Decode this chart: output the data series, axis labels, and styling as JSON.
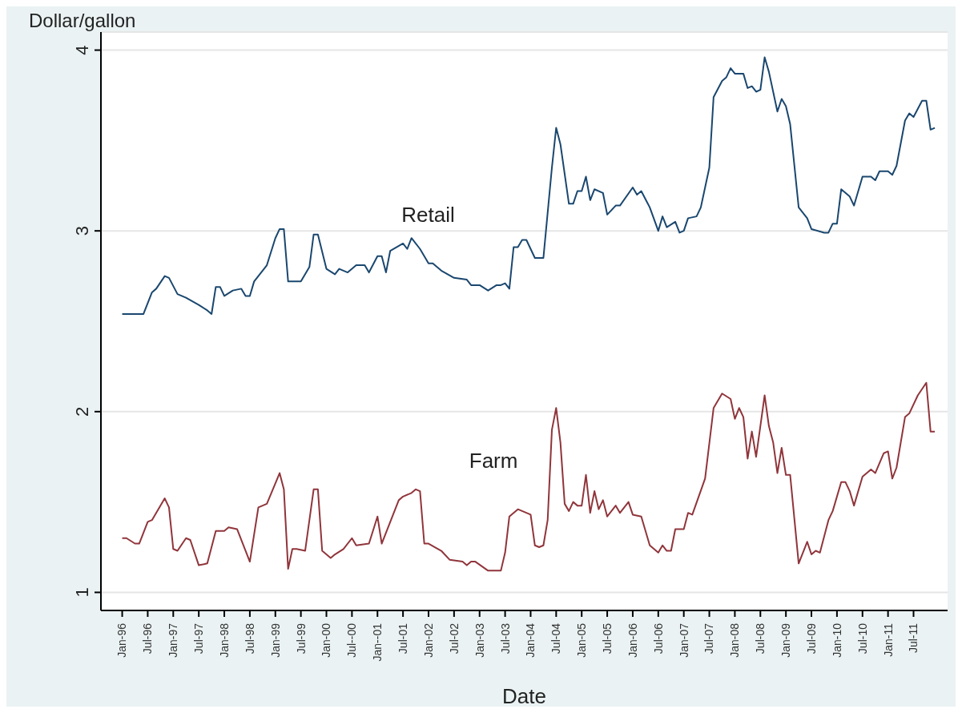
{
  "chart_data": {
    "type": "line",
    "xlabel": "Date",
    "ylabel": "Dollar/gallon",
    "legend": false,
    "grid": "y",
    "xlim": [
      "1995-08",
      "2012-03"
    ],
    "ylim": [
      0.9,
      4.1
    ],
    "yticks": [
      1,
      2,
      3,
      4
    ],
    "xticks": [
      {
        "value": "1996-01",
        "label": "Jan-96"
      },
      {
        "value": "1996-07",
        "label": "Jul-96"
      },
      {
        "value": "1997-01",
        "label": "Jan-97"
      },
      {
        "value": "1997-07",
        "label": "Jul-97"
      },
      {
        "value": "1998-01",
        "label": "Jan-98"
      },
      {
        "value": "1998-07",
        "label": "Jul-98"
      },
      {
        "value": "1999-01",
        "label": "Jan-99"
      },
      {
        "value": "1999-07",
        "label": "Jul-99"
      },
      {
        "value": "2000-01",
        "label": "Jan-00"
      },
      {
        "value": "2000-07",
        "label": "Jul--00"
      },
      {
        "value": "2001-01",
        "label": "Jan--01"
      },
      {
        "value": "2001-07",
        "label": "Jul-01"
      },
      {
        "value": "2002-01",
        "label": "Jan-02"
      },
      {
        "value": "2002-07",
        "label": "Jul-02"
      },
      {
        "value": "2003-01",
        "label": "Jan-03"
      },
      {
        "value": "2003-07",
        "label": "Jul-03"
      },
      {
        "value": "2004-01",
        "label": "Jan-04"
      },
      {
        "value": "2004-07",
        "label": "Jul-04"
      },
      {
        "value": "2005-01",
        "label": "Jan-05"
      },
      {
        "value": "2005-07",
        "label": "Jul-05"
      },
      {
        "value": "2006-01",
        "label": "Jan-06"
      },
      {
        "value": "2006-07",
        "label": "Jul-06"
      },
      {
        "value": "2007-01",
        "label": "Jan-07"
      },
      {
        "value": "2007-07",
        "label": "Jul-07"
      },
      {
        "value": "2008-01",
        "label": "Jan-08"
      },
      {
        "value": "2008-07",
        "label": "Jul-08"
      },
      {
        "value": "2009-01",
        "label": "Jan-09"
      },
      {
        "value": "2009-07",
        "label": "Jul-09"
      },
      {
        "value": "2010-01",
        "label": "Jan-10"
      },
      {
        "value": "2010-07",
        "label": "Jul-10"
      },
      {
        "value": "2011-01",
        "label": "Jan-11"
      },
      {
        "value": "2011-07",
        "label": "Jul-11"
      }
    ],
    "series": [
      {
        "name": "Retail",
        "color": "#1a476f",
        "x": [
          "1996-01",
          "1996-06",
          "1996-08",
          "1996-09",
          "1996-11",
          "1996-12",
          "1997-02",
          "1997-04",
          "1997-07",
          "1997-09",
          "1997-10",
          "1997-11",
          "1997-12",
          "1998-01",
          "1998-03",
          "1998-05",
          "1998-06",
          "1998-07",
          "1998-08",
          "1998-11",
          "1999-01",
          "1999-02",
          "1999-03",
          "1999-04",
          "1999-07",
          "1999-09",
          "1999-10",
          "1999-11",
          "2000-01",
          "2000-03",
          "2000-04",
          "2000-06",
          "2000-08",
          "2000-10",
          "2000-11",
          "2001-01",
          "2001-02",
          "2001-03",
          "2001-04",
          "2001-07",
          "2001-08",
          "2001-09",
          "2001-11",
          "2002-01",
          "2002-02",
          "2002-04",
          "2002-07",
          "2002-10",
          "2002-11",
          "2003-01",
          "2003-03",
          "2003-05",
          "2003-06",
          "2003-07",
          "2003-08",
          "2003-09",
          "2003-10",
          "2003-11",
          "2003-12",
          "2004-02",
          "2004-04",
          "2004-06",
          "2004-07",
          "2004-08",
          "2004-10",
          "2004-11",
          "2004-12",
          "2005-01",
          "2005-02",
          "2005-03",
          "2005-04",
          "2005-06",
          "2005-07",
          "2005-09",
          "2005-10",
          "2006-01",
          "2006-02",
          "2006-03",
          "2006-05",
          "2006-07",
          "2006-08",
          "2006-09",
          "2006-11",
          "2006-12",
          "2007-01",
          "2007-02",
          "2007-04",
          "2007-05",
          "2007-07",
          "2007-08",
          "2007-10",
          "2007-11",
          "2007-12",
          "2008-01",
          "2008-03",
          "2008-04",
          "2008-05",
          "2008-06",
          "2008-07",
          "2008-08",
          "2008-09",
          "2008-11",
          "2008-12",
          "2009-01",
          "2009-02",
          "2009-04",
          "2009-06",
          "2009-07",
          "2009-10",
          "2009-11",
          "2009-12",
          "2010-01",
          "2010-02",
          "2010-04",
          "2010-05",
          "2010-07",
          "2010-09",
          "2010-10",
          "2010-11",
          "2011-01",
          "2011-02",
          "2011-03",
          "2011-05",
          "2011-06",
          "2011-07",
          "2011-09",
          "2011-10",
          "2011-11",
          "2011-12"
        ],
        "values": [
          2.54,
          2.54,
          2.66,
          2.68,
          2.75,
          2.74,
          2.65,
          2.63,
          2.59,
          2.56,
          2.54,
          2.69,
          2.69,
          2.64,
          2.67,
          2.68,
          2.64,
          2.64,
          2.72,
          2.81,
          2.96,
          3.01,
          3.01,
          2.72,
          2.72,
          2.8,
          2.98,
          2.98,
          2.79,
          2.76,
          2.79,
          2.77,
          2.81,
          2.81,
          2.77,
          2.86,
          2.86,
          2.77,
          2.89,
          2.93,
          2.9,
          2.96,
          2.9,
          2.82,
          2.82,
          2.78,
          2.74,
          2.73,
          2.7,
          2.7,
          2.67,
          2.7,
          2.7,
          2.71,
          2.68,
          2.91,
          2.91,
          2.95,
          2.95,
          2.85,
          2.85,
          3.35,
          3.57,
          3.48,
          3.15,
          3.15,
          3.22,
          3.22,
          3.3,
          3.17,
          3.23,
          3.21,
          3.09,
          3.14,
          3.14,
          3.24,
          3.2,
          3.22,
          3.13,
          3.0,
          3.08,
          3.02,
          3.05,
          2.99,
          3.0,
          3.07,
          3.08,
          3.13,
          3.35,
          3.74,
          3.83,
          3.85,
          3.9,
          3.87,
          3.87,
          3.79,
          3.8,
          3.77,
          3.78,
          3.96,
          3.88,
          3.66,
          3.73,
          3.69,
          3.59,
          3.13,
          3.07,
          3.01,
          2.99,
          2.99,
          3.04,
          3.04,
          3.23,
          3.19,
          3.14,
          3.3,
          3.3,
          3.28,
          3.33,
          3.33,
          3.31,
          3.36,
          3.61,
          3.65,
          3.63,
          3.72,
          3.72,
          3.56,
          3.57
        ]
      },
      {
        "name": "Farm",
        "color": "#90353b",
        "x": [
          "1996-01",
          "1996-02",
          "1996-04",
          "1996-05",
          "1996-07",
          "1996-08",
          "1996-11",
          "1996-12",
          "1997-01",
          "1997-02",
          "1997-04",
          "1997-05",
          "1997-07",
          "1997-09",
          "1997-11",
          "1998-01",
          "1998-02",
          "1998-04",
          "1998-07",
          "1998-09",
          "1998-11",
          "1999-02",
          "1999-03",
          "1999-04",
          "1999-05",
          "1999-06",
          "1999-08",
          "1999-10",
          "1999-11",
          "1999-12",
          "2000-02",
          "2000-03",
          "2000-05",
          "2000-07",
          "2000-08",
          "2000-11",
          "2001-01",
          "2001-02",
          "2001-06",
          "2001-07",
          "2001-09",
          "2001-10",
          "2001-11",
          "2001-12",
          "2002-01",
          "2002-04",
          "2002-06",
          "2002-09",
          "2002-10",
          "2002-11",
          "2002-12",
          "2003-03",
          "2003-06",
          "2003-07",
          "2003-08",
          "2003-10",
          "2003-11",
          "2004-01",
          "2004-02",
          "2004-03",
          "2004-04",
          "2004-05",
          "2004-06",
          "2004-07",
          "2004-08",
          "2004-09",
          "2004-10",
          "2004-11",
          "2004-12",
          "2005-01",
          "2005-02",
          "2005-03",
          "2005-04",
          "2005-05",
          "2005-06",
          "2005-07",
          "2005-09",
          "2005-10",
          "2005-12",
          "2006-01",
          "2006-03",
          "2006-05",
          "2006-07",
          "2006-08",
          "2006-09",
          "2006-10",
          "2006-11",
          "2007-01",
          "2007-02",
          "2007-03",
          "2007-06",
          "2007-08",
          "2007-10",
          "2007-12",
          "2008-01",
          "2008-02",
          "2008-03",
          "2008-04",
          "2008-05",
          "2008-06",
          "2008-08",
          "2008-09",
          "2008-10",
          "2008-11",
          "2008-12",
          "2009-01",
          "2009-02",
          "2009-04",
          "2009-06",
          "2009-07",
          "2009-08",
          "2009-09",
          "2009-11",
          "2009-12",
          "2010-02",
          "2010-03",
          "2010-04",
          "2010-05",
          "2010-07",
          "2010-09",
          "2010-10",
          "2010-12",
          "2011-01",
          "2011-02",
          "2011-03",
          "2011-05",
          "2011-06",
          "2011-08",
          "2011-10",
          "2011-11",
          "2011-12"
        ],
        "values": [
          1.3,
          1.3,
          1.27,
          1.27,
          1.39,
          1.4,
          1.52,
          1.47,
          1.24,
          1.23,
          1.3,
          1.29,
          1.15,
          1.16,
          1.34,
          1.34,
          1.36,
          1.35,
          1.17,
          1.47,
          1.49,
          1.66,
          1.57,
          1.13,
          1.24,
          1.24,
          1.23,
          1.57,
          1.57,
          1.23,
          1.19,
          1.21,
          1.24,
          1.3,
          1.26,
          1.27,
          1.42,
          1.27,
          1.51,
          1.53,
          1.55,
          1.57,
          1.56,
          1.27,
          1.27,
          1.23,
          1.18,
          1.17,
          1.15,
          1.17,
          1.17,
          1.12,
          1.12,
          1.22,
          1.42,
          1.46,
          1.45,
          1.43,
          1.26,
          1.25,
          1.26,
          1.4,
          1.9,
          2.02,
          1.83,
          1.49,
          1.45,
          1.5,
          1.48,
          1.48,
          1.65,
          1.44,
          1.56,
          1.46,
          1.51,
          1.42,
          1.48,
          1.44,
          1.5,
          1.43,
          1.42,
          1.26,
          1.22,
          1.26,
          1.23,
          1.23,
          1.35,
          1.35,
          1.44,
          1.43,
          1.63,
          2.02,
          2.1,
          2.07,
          1.96,
          2.02,
          1.97,
          1.74,
          1.89,
          1.75,
          2.09,
          1.92,
          1.83,
          1.66,
          1.8,
          1.65,
          1.65,
          1.16,
          1.28,
          1.21,
          1.23,
          1.22,
          1.4,
          1.45,
          1.61,
          1.61,
          1.56,
          1.48,
          1.64,
          1.68,
          1.66,
          1.77,
          1.78,
          1.63,
          1.69,
          1.97,
          1.99,
          2.09,
          2.16,
          1.89,
          1.89
        ]
      }
    ]
  }
}
